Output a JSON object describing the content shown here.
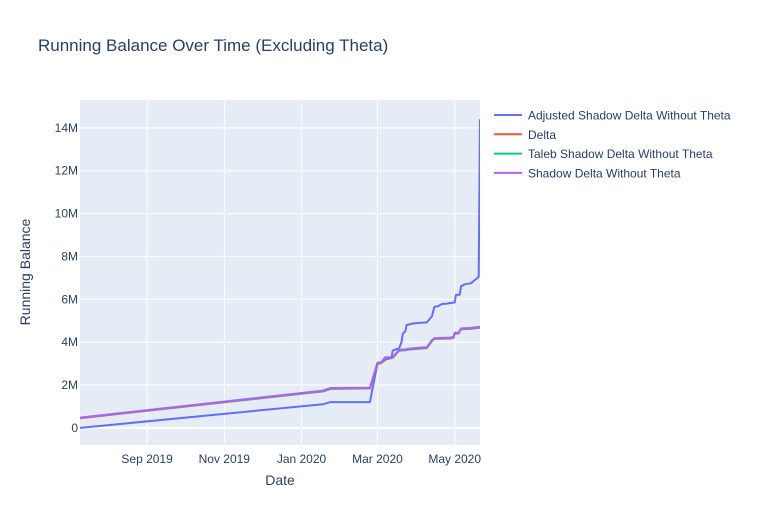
{
  "chart_data": {
    "type": "line",
    "title": "Running Balance Over Time (Excluding Theta)",
    "xlabel": "Date",
    "ylabel": "Running Balance",
    "x_range": [
      "2019-07-10",
      "2020-05-21"
    ],
    "y_range": [
      -800000,
      15300000
    ],
    "x_ticks": [
      {
        "date": "2019-09-01",
        "label": "Sep 2019"
      },
      {
        "date": "2019-11-01",
        "label": "Nov 2019"
      },
      {
        "date": "2020-01-01",
        "label": "Jan 2020"
      },
      {
        "date": "2020-03-01",
        "label": "Mar 2020"
      },
      {
        "date": "2020-05-01",
        "label": "May 2020"
      }
    ],
    "y_ticks": [
      {
        "value": 0,
        "label": "0"
      },
      {
        "value": 2000000,
        "label": "2M"
      },
      {
        "value": 4000000,
        "label": "4M"
      },
      {
        "value": 6000000,
        "label": "6M"
      },
      {
        "value": 8000000,
        "label": "8M"
      },
      {
        "value": 10000000,
        "label": "10M"
      },
      {
        "value": 12000000,
        "label": "12M"
      },
      {
        "value": 14000000,
        "label": "14M"
      }
    ],
    "grid": true,
    "legend_position": "right",
    "series": [
      {
        "name": "Adjusted Shadow Delta Without Theta",
        "color": "#636efa",
        "points": [
          [
            "2019-07-10",
            0
          ],
          [
            "2019-12-10",
            880000
          ],
          [
            "2020-01-18",
            1100000
          ],
          [
            "2020-01-24",
            1200000
          ],
          [
            "2020-02-24",
            1200000
          ],
          [
            "2020-03-01",
            3000000
          ],
          [
            "2020-03-04",
            3050000
          ],
          [
            "2020-03-08",
            3200000
          ],
          [
            "2020-03-12",
            3250000
          ],
          [
            "2020-03-13",
            3600000
          ],
          [
            "2020-03-15",
            3650000
          ],
          [
            "2020-03-18",
            3700000
          ],
          [
            "2020-03-20",
            4000000
          ],
          [
            "2020-03-21",
            4400000
          ],
          [
            "2020-03-23",
            4500000
          ],
          [
            "2020-03-24",
            4800000
          ],
          [
            "2020-03-29",
            4870000
          ],
          [
            "2020-04-03",
            4900000
          ],
          [
            "2020-04-09",
            4920000
          ],
          [
            "2020-04-13",
            5200000
          ],
          [
            "2020-04-15",
            5650000
          ],
          [
            "2020-04-18",
            5680000
          ],
          [
            "2020-04-21",
            5780000
          ],
          [
            "2020-04-25",
            5800000
          ],
          [
            "2020-04-27",
            5820000
          ],
          [
            "2020-05-01",
            5850000
          ],
          [
            "2020-05-02",
            6200000
          ],
          [
            "2020-05-05",
            6220000
          ],
          [
            "2020-05-06",
            6600000
          ],
          [
            "2020-05-09",
            6700000
          ],
          [
            "2020-05-14",
            6750000
          ],
          [
            "2020-05-17",
            6900000
          ],
          [
            "2020-05-19",
            7000000
          ],
          [
            "2020-05-20",
            7050000
          ],
          [
            "2020-05-21",
            14400000
          ]
        ]
      },
      {
        "name": "Delta",
        "color": "#ef553b",
        "points": [
          [
            "2019-07-10",
            450000
          ],
          [
            "2020-01-18",
            1700000
          ],
          [
            "2020-01-24",
            1820000
          ],
          [
            "2020-02-24",
            1840000
          ],
          [
            "2020-03-01",
            3000000
          ],
          [
            "2020-03-04",
            3020000
          ],
          [
            "2020-03-07",
            3250000
          ],
          [
            "2020-03-13",
            3270000
          ],
          [
            "2020-03-18",
            3600000
          ],
          [
            "2020-03-23",
            3620000
          ],
          [
            "2020-03-25",
            3650000
          ],
          [
            "2020-04-03",
            3700000
          ],
          [
            "2020-04-09",
            3720000
          ],
          [
            "2020-04-13",
            4050000
          ],
          [
            "2020-04-15",
            4150000
          ],
          [
            "2020-04-27",
            4170000
          ],
          [
            "2020-04-30",
            4200000
          ],
          [
            "2020-05-01",
            4400000
          ],
          [
            "2020-05-04",
            4400000
          ],
          [
            "2020-05-06",
            4600000
          ],
          [
            "2020-05-13",
            4620000
          ],
          [
            "2020-05-21",
            4680000
          ]
        ]
      },
      {
        "name": "Taleb Shadow Delta Without Theta",
        "color": "#00cc96",
        "points": [
          [
            "2019-07-10",
            470000
          ],
          [
            "2020-01-18",
            1720000
          ],
          [
            "2020-01-24",
            1840000
          ],
          [
            "2020-02-24",
            1860000
          ],
          [
            "2020-03-01",
            3020000
          ],
          [
            "2020-03-04",
            3040000
          ],
          [
            "2020-03-07",
            3270000
          ],
          [
            "2020-03-13",
            3290000
          ],
          [
            "2020-03-18",
            3620000
          ],
          [
            "2020-03-23",
            3640000
          ],
          [
            "2020-03-25",
            3670000
          ],
          [
            "2020-04-03",
            3720000
          ],
          [
            "2020-04-09",
            3740000
          ],
          [
            "2020-04-13",
            4070000
          ],
          [
            "2020-04-15",
            4170000
          ],
          [
            "2020-04-27",
            4190000
          ],
          [
            "2020-04-30",
            4220000
          ],
          [
            "2020-05-01",
            4420000
          ],
          [
            "2020-05-04",
            4420000
          ],
          [
            "2020-05-06",
            4620000
          ],
          [
            "2020-05-13",
            4640000
          ],
          [
            "2020-05-21",
            4700000
          ]
        ]
      },
      {
        "name": "Shadow Delta Without Theta",
        "color": "#ab63fa",
        "points": [
          [
            "2019-07-10",
            480000
          ],
          [
            "2020-01-18",
            1740000
          ],
          [
            "2020-01-24",
            1860000
          ],
          [
            "2020-02-24",
            1870000
          ],
          [
            "2020-03-01",
            3040000
          ],
          [
            "2020-03-04",
            3060000
          ],
          [
            "2020-03-07",
            3290000
          ],
          [
            "2020-03-13",
            3300000
          ],
          [
            "2020-03-18",
            3640000
          ],
          [
            "2020-03-23",
            3660000
          ],
          [
            "2020-03-25",
            3690000
          ],
          [
            "2020-04-03",
            3740000
          ],
          [
            "2020-04-09",
            3760000
          ],
          [
            "2020-04-13",
            4090000
          ],
          [
            "2020-04-15",
            4190000
          ],
          [
            "2020-04-27",
            4210000
          ],
          [
            "2020-04-30",
            4240000
          ],
          [
            "2020-05-01",
            4440000
          ],
          [
            "2020-05-04",
            4440000
          ],
          [
            "2020-05-06",
            4640000
          ],
          [
            "2020-05-13",
            4660000
          ],
          [
            "2020-05-21",
            4720000
          ]
        ]
      }
    ]
  }
}
